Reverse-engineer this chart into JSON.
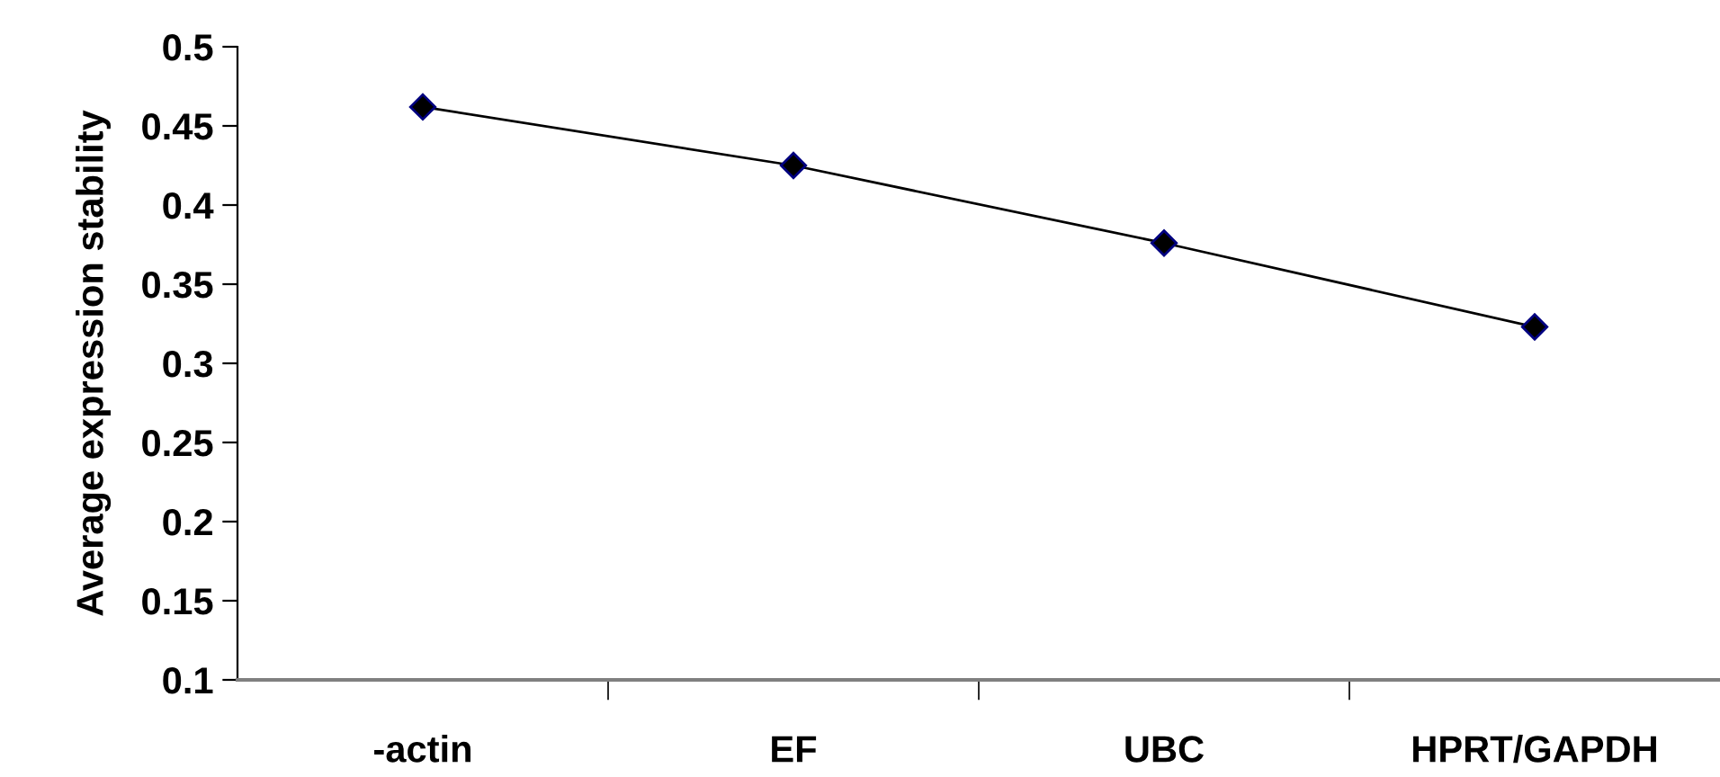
{
  "chart_data": {
    "type": "line",
    "ylabel": "Average expression stability",
    "categories": [
      "-actin",
      "EF",
      "UBC",
      "HPRT/GAPDH"
    ],
    "series": [
      {
        "color": "#000000",
        "values": [
          0.462,
          0.425,
          0.376,
          0.323
        ]
      }
    ],
    "ylim": [
      0.1,
      0.5
    ],
    "yticks": [
      0.1,
      0.15,
      0.2,
      0.25,
      0.3,
      0.35,
      0.4,
      0.45,
      0.5
    ],
    "grid": false,
    "legend": false,
    "marker": "diamond",
    "line_style": "solid"
  }
}
